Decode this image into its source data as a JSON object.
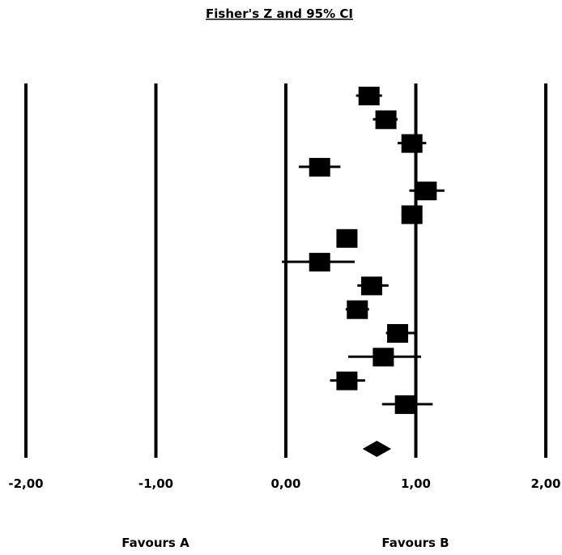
{
  "chart_data": {
    "type": "forest",
    "title": "Fisher's Z and 95% CI",
    "xlim": [
      -2,
      2
    ],
    "ticks": [
      {
        "value": -2,
        "label": "-2,00"
      },
      {
        "value": -1,
        "label": "-1,00"
      },
      {
        "value": 0,
        "label": "0,00"
      },
      {
        "value": 1,
        "label": "1,00"
      },
      {
        "value": 2,
        "label": "2,00"
      }
    ],
    "favours_left": "Favours A",
    "favours_right": "Favours B",
    "studies": [
      {
        "est": 0.64,
        "lo": 0.54,
        "hi": 0.74
      },
      {
        "est": 0.77,
        "lo": 0.67,
        "hi": 0.86
      },
      {
        "est": 0.97,
        "lo": 0.86,
        "hi": 1.08
      },
      {
        "est": 0.26,
        "lo": 0.1,
        "hi": 0.42
      },
      {
        "est": 1.08,
        "lo": 0.95,
        "hi": 1.22
      },
      {
        "est": 0.97,
        "lo": 0.89,
        "hi": 1.04
      },
      {
        "est": 0.47,
        "lo": 0.47,
        "hi": 0.47
      },
      {
        "est": 0.26,
        "lo": -0.03,
        "hi": 0.53
      },
      {
        "est": 0.66,
        "lo": 0.55,
        "hi": 0.79
      },
      {
        "est": 0.55,
        "lo": 0.46,
        "hi": 0.64
      },
      {
        "est": 0.86,
        "lo": 0.77,
        "hi": 0.99
      },
      {
        "est": 0.75,
        "lo": 0.48,
        "hi": 1.04
      },
      {
        "est": 0.47,
        "lo": 0.34,
        "hi": 0.61
      },
      {
        "est": 0.92,
        "lo": 0.74,
        "hi": 1.13
      }
    ],
    "summary": {
      "est": 0.7,
      "lo": 0.59,
      "hi": 0.81
    }
  }
}
